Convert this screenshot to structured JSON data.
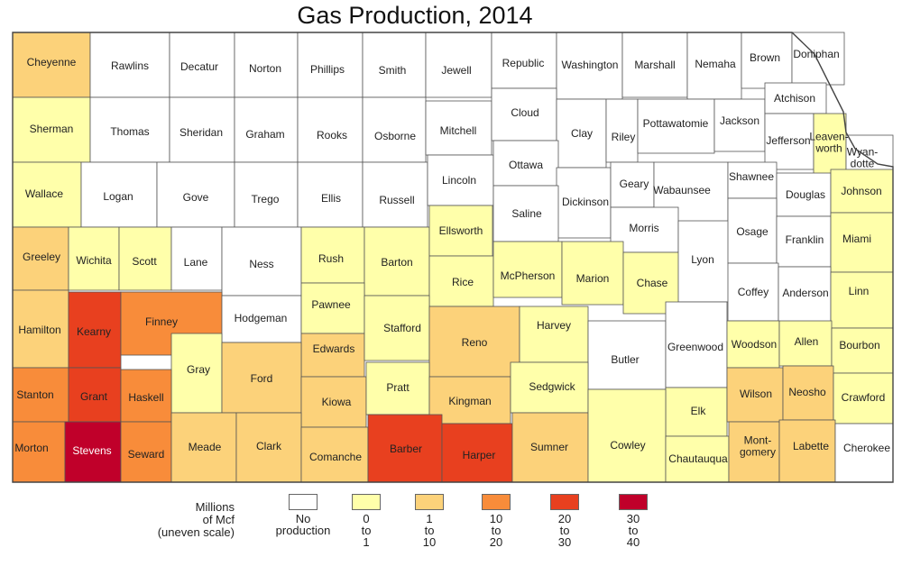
{
  "title": "Gas Production, 2014",
  "classes": {
    "none": "#ffffff",
    "c1": "#ffffaa",
    "c2": "#fcd27a",
    "c3": "#f88c3a",
    "c4": "#e8401f",
    "c5": "#c0002a"
  },
  "legend": {
    "title": "Millions\nof Mcf\n(uneven scale)",
    "items": [
      {
        "label": "No\nproduction",
        "class": "none"
      },
      {
        "label": "0\nto\n1",
        "class": "c1"
      },
      {
        "label": "1\nto\n10",
        "class": "c2"
      },
      {
        "label": "10\nto\n20",
        "class": "c3"
      },
      {
        "label": "20\nto\n30",
        "class": "c4"
      },
      {
        "label": "30\nto\n40",
        "class": "c5"
      }
    ]
  },
  "counties": [
    {
      "name": "Cheyenne",
      "class": "c2"
    },
    {
      "name": "Rawlins",
      "class": "none"
    },
    {
      "name": "Decatur",
      "class": "none"
    },
    {
      "name": "Norton",
      "class": "none"
    },
    {
      "name": "Phillips",
      "class": "none"
    },
    {
      "name": "Smith",
      "class": "none"
    },
    {
      "name": "Jewell",
      "class": "none"
    },
    {
      "name": "Republic",
      "class": "none"
    },
    {
      "name": "Washington",
      "class": "none"
    },
    {
      "name": "Marshall",
      "class": "none"
    },
    {
      "name": "Nemaha",
      "class": "none"
    },
    {
      "name": "Brown",
      "class": "none"
    },
    {
      "name": "Doniphan",
      "class": "none"
    },
    {
      "name": "Sherman",
      "class": "c1"
    },
    {
      "name": "Thomas",
      "class": "none"
    },
    {
      "name": "Sheridan",
      "class": "none"
    },
    {
      "name": "Graham",
      "class": "none"
    },
    {
      "name": "Rooks",
      "class": "none"
    },
    {
      "name": "Osborne",
      "class": "none"
    },
    {
      "name": "Mitchell",
      "class": "none"
    },
    {
      "name": "Cloud",
      "class": "none"
    },
    {
      "name": "Clay",
      "class": "none"
    },
    {
      "name": "Riley",
      "class": "none"
    },
    {
      "name": "Pottawatomie",
      "class": "none"
    },
    {
      "name": "Jackson",
      "class": "none"
    },
    {
      "name": "Atchison",
      "class": "none"
    },
    {
      "name": "Jefferson",
      "class": "none"
    },
    {
      "name": "Leaven-\nworth",
      "class": "c1"
    },
    {
      "name": "Wyan-\ndotte",
      "class": "none"
    },
    {
      "name": "Wallace",
      "class": "c1"
    },
    {
      "name": "Logan",
      "class": "none"
    },
    {
      "name": "Gove",
      "class": "none"
    },
    {
      "name": "Trego",
      "class": "none"
    },
    {
      "name": "Ellis",
      "class": "none"
    },
    {
      "name": "Russell",
      "class": "none"
    },
    {
      "name": "Lincoln",
      "class": "none"
    },
    {
      "name": "Ottawa",
      "class": "none"
    },
    {
      "name": "Dickinson",
      "class": "none"
    },
    {
      "name": "Geary",
      "class": "none"
    },
    {
      "name": "Wabaunsee",
      "class": "none"
    },
    {
      "name": "Shawnee",
      "class": "none"
    },
    {
      "name": "Douglas",
      "class": "none"
    },
    {
      "name": "Johnson",
      "class": "c1"
    },
    {
      "name": "Saline",
      "class": "none"
    },
    {
      "name": "Morris",
      "class": "none"
    },
    {
      "name": "Greeley",
      "class": "c2"
    },
    {
      "name": "Wichita",
      "class": "c1"
    },
    {
      "name": "Scott",
      "class": "c1"
    },
    {
      "name": "Lane",
      "class": "none"
    },
    {
      "name": "Ness",
      "class": "none"
    },
    {
      "name": "Rush",
      "class": "c1"
    },
    {
      "name": "Barton",
      "class": "c1"
    },
    {
      "name": "Ellsworth",
      "class": "c1"
    },
    {
      "name": "Rice",
      "class": "c1"
    },
    {
      "name": "McPherson",
      "class": "c1"
    },
    {
      "name": "Marion",
      "class": "c1"
    },
    {
      "name": "Chase",
      "class": "c1"
    },
    {
      "name": "Lyon",
      "class": "none"
    },
    {
      "name": "Osage",
      "class": "none"
    },
    {
      "name": "Franklin",
      "class": "none"
    },
    {
      "name": "Miami",
      "class": "c1"
    },
    {
      "name": "Coffey",
      "class": "none"
    },
    {
      "name": "Anderson",
      "class": "none"
    },
    {
      "name": "Linn",
      "class": "c1"
    },
    {
      "name": "Hamilton",
      "class": "c2"
    },
    {
      "name": "Kearny",
      "class": "c4"
    },
    {
      "name": "Finney",
      "class": "c3"
    },
    {
      "name": "Hodgeman",
      "class": "none"
    },
    {
      "name": "Pawnee",
      "class": "c1"
    },
    {
      "name": "Edwards",
      "class": "c2"
    },
    {
      "name": "Stafford",
      "class": "c1"
    },
    {
      "name": "Reno",
      "class": "c2"
    },
    {
      "name": "Harvey",
      "class": "c1"
    },
    {
      "name": "Butler",
      "class": "none"
    },
    {
      "name": "Greenwood",
      "class": "none"
    },
    {
      "name": "Woodson",
      "class": "c1"
    },
    {
      "name": "Allen",
      "class": "c1"
    },
    {
      "name": "Bourbon",
      "class": "c1"
    },
    {
      "name": "Gray",
      "class": "c1"
    },
    {
      "name": "Ford",
      "class": "c2"
    },
    {
      "name": "Stanton",
      "class": "c3"
    },
    {
      "name": "Grant",
      "class": "c4"
    },
    {
      "name": "Haskell",
      "class": "c3"
    },
    {
      "name": "Kiowa",
      "class": "c2"
    },
    {
      "name": "Pratt",
      "class": "c1"
    },
    {
      "name": "Kingman",
      "class": "c2"
    },
    {
      "name": "Sedgwick",
      "class": "c1"
    },
    {
      "name": "Elk",
      "class": "c1"
    },
    {
      "name": "Wilson",
      "class": "c2"
    },
    {
      "name": "Neosho",
      "class": "c2"
    },
    {
      "name": "Crawford",
      "class": "c1"
    },
    {
      "name": "Morton",
      "class": "c3"
    },
    {
      "name": "Stevens",
      "class": "c5"
    },
    {
      "name": "Seward",
      "class": "c3"
    },
    {
      "name": "Meade",
      "class": "c2"
    },
    {
      "name": "Clark",
      "class": "c2"
    },
    {
      "name": "Comanche",
      "class": "c2"
    },
    {
      "name": "Barber",
      "class": "c4"
    },
    {
      "name": "Harper",
      "class": "c4"
    },
    {
      "name": "Sumner",
      "class": "c2"
    },
    {
      "name": "Cowley",
      "class": "c1"
    },
    {
      "name": "Chautauqua",
      "class": "c1"
    },
    {
      "name": "Mont-\ngomery",
      "class": "c2"
    },
    {
      "name": "Labette",
      "class": "c2"
    },
    {
      "name": "Cherokee",
      "class": "none"
    }
  ]
}
